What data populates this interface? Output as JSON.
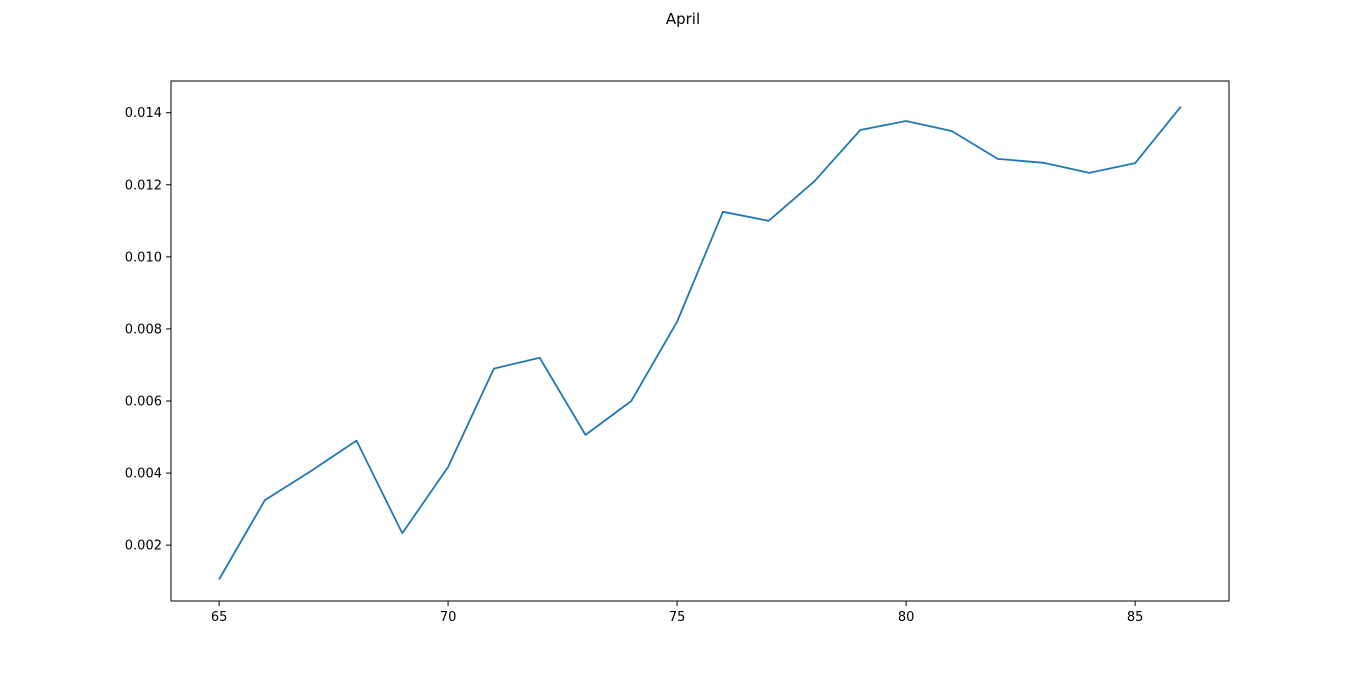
{
  "chart_data": {
    "type": "line",
    "title": "April",
    "xlabel": "",
    "ylabel": "",
    "xlim": [
      63.95,
      87.05
    ],
    "ylim": [
      0.00045,
      0.01488
    ],
    "x_ticks": [
      65,
      70,
      75,
      80,
      85
    ],
    "y_ticks": [
      0.002,
      0.004,
      0.006,
      0.008,
      0.01,
      0.012,
      0.014
    ],
    "y_tick_labels": [
      "0.002",
      "0.004",
      "0.006",
      "0.008",
      "0.010",
      "0.012",
      "0.014"
    ],
    "grid": false,
    "series": [
      {
        "color": "#1f77b4",
        "x": [
          65,
          66,
          67,
          68,
          69,
          70,
          71,
          72,
          73,
          74,
          75,
          76,
          77,
          78,
          79,
          80,
          81,
          82,
          83,
          84,
          85,
          86
        ],
        "y": [
          0.00105,
          0.00325,
          0.00405,
          0.0049,
          0.00233,
          0.00417,
          0.0069,
          0.0072,
          0.00506,
          0.006,
          0.0082,
          0.01125,
          0.011,
          0.0121,
          0.01352,
          0.01377,
          0.01349,
          0.01272,
          0.01261,
          0.01233,
          0.0126,
          0.01417
        ]
      }
    ]
  }
}
